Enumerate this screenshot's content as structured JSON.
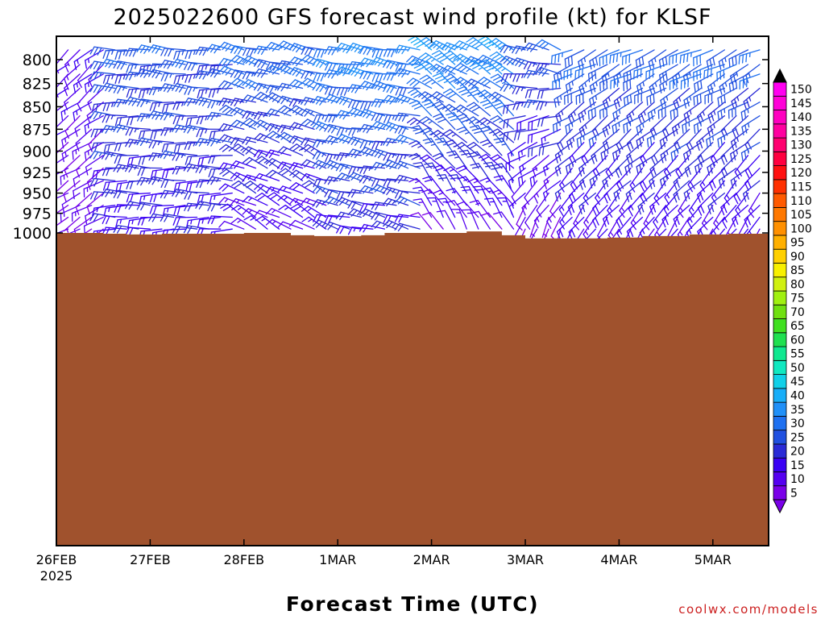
{
  "chart_data": {
    "type": "wind-barb profile",
    "title": "2025022600 GFS forecast wind profile (kt) for KLSF",
    "xlabel": "Forecast Time (UTC)",
    "ylabel": "",
    "credit": "coolwx.com/models",
    "x_ticks": [
      "26FEB",
      "27FEB",
      "28FEB",
      "1MAR",
      "2MAR",
      "3MAR",
      "4MAR",
      "5MAR"
    ],
    "x_year_label": "2025",
    "x_range": [
      "26FEB 00Z",
      "5MAR 12Z"
    ],
    "y_ticks": [
      800,
      825,
      850,
      875,
      900,
      925,
      950,
      975,
      1000
    ],
    "y_range_hpa": [
      790,
      1013
    ],
    "y_scale": "log pressure, reversed",
    "time_step_hours": 3,
    "levels_hpa": [
      790,
      805,
      815,
      830,
      845,
      860,
      875,
      890,
      905,
      920,
      935,
      950,
      965,
      980,
      995
    ],
    "colorbar": {
      "min": 5,
      "max": 150,
      "step": 5,
      "labels": [
        5,
        10,
        15,
        20,
        25,
        30,
        35,
        40,
        45,
        50,
        55,
        60,
        65,
        70,
        75,
        80,
        85,
        90,
        95,
        100,
        105,
        110,
        115,
        120,
        125,
        130,
        135,
        140,
        145,
        150
      ],
      "colors": [
        "#7a00e8",
        "#5500f0",
        "#3a00f4",
        "#2a2ad6",
        "#2050e0",
        "#1e70f0",
        "#2090f8",
        "#18aef8",
        "#10d0e8",
        "#10e8c0",
        "#10e890",
        "#20e050",
        "#40e020",
        "#70e010",
        "#a0f010",
        "#d0f010",
        "#f8f000",
        "#ffd000",
        "#ffb000",
        "#ff9000",
        "#ff7800",
        "#ff5a00",
        "#ff3000",
        "#ff1010",
        "#ff0040",
        "#ff0070",
        "#ff00a0",
        "#ff00c0",
        "#ff00d8",
        "#ff00f0"
      ]
    },
    "terrain_color": "#a0522d",
    "wind_segments": [
      {
        "label": "26FEB 00Z-26FEB 12Z",
        "from_hour": 0,
        "to_hour": 12,
        "speed_low": 10,
        "speed_high": 14,
        "dir_low": 240,
        "dir_high": 230
      },
      {
        "label": "26FEB 15Z-27FEB 21Z",
        "from_hour": 15,
        "to_hour": 45,
        "speed_low": 18,
        "speed_high": 28,
        "dir_low": 270,
        "dir_high": 275
      },
      {
        "label": "28FEB 00Z-28FEB 21Z",
        "from_hour": 48,
        "to_hour": 69,
        "speed_low": 14,
        "speed_high": 32,
        "dir_low": 300,
        "dir_high": 285
      },
      {
        "label": "1MAR 00Z-1MAR 21Z",
        "from_hour": 72,
        "to_hour": 93,
        "speed_low": 20,
        "speed_high": 35,
        "dir_low": 285,
        "dir_high": 280
      },
      {
        "label": "2MAR 00Z-2MAR 21Z",
        "from_hour": 96,
        "to_hour": 117,
        "speed_low": 12,
        "speed_high": 38,
        "dir_low": 330,
        "dir_high": 300
      },
      {
        "label": "3MAR 00Z-3MAR 09Z",
        "from_hour": 120,
        "to_hour": 129,
        "speed_low": 8,
        "speed_high": 28,
        "dir_low": 200,
        "dir_high": 290
      },
      {
        "label": "3MAR 12Z-5MAR 12Z",
        "from_hour": 132,
        "to_hour": 180,
        "speed_low": 14,
        "speed_high": 30,
        "dir_low": 215,
        "dir_high": 245
      }
    ],
    "surface_pressure_hpa": [
      {
        "hour": 0,
        "hpa": 1000
      },
      {
        "hour": 12,
        "hpa": 1001
      },
      {
        "hour": 18,
        "hpa": 1002
      },
      {
        "hour": 27,
        "hpa": 1001
      },
      {
        "hour": 39,
        "hpa": 1001
      },
      {
        "hour": 48,
        "hpa": 1000
      },
      {
        "hour": 60,
        "hpa": 1003
      },
      {
        "hour": 66,
        "hpa": 1004
      },
      {
        "hour": 78,
        "hpa": 1003
      },
      {
        "hour": 84,
        "hpa": 1000
      },
      {
        "hour": 96,
        "hpa": 1000
      },
      {
        "hour": 105,
        "hpa": 998
      },
      {
        "hour": 114,
        "hpa": 1003
      },
      {
        "hour": 120,
        "hpa": 1007
      },
      {
        "hour": 132,
        "hpa": 1007
      },
      {
        "hour": 141,
        "hpa": 1006
      },
      {
        "hour": 150,
        "hpa": 1004
      },
      {
        "hour": 162,
        "hpa": 1002
      },
      {
        "hour": 172,
        "hpa": 1001
      },
      {
        "hour": 180,
        "hpa": 1001
      }
    ]
  }
}
